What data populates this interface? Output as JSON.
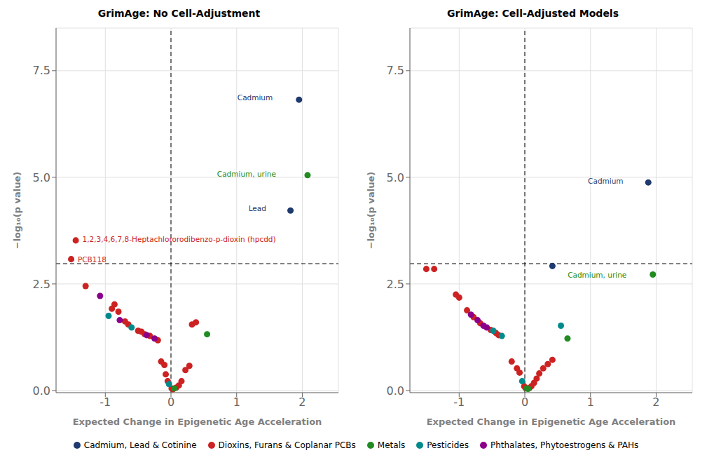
{
  "chart_data": [
    {
      "type": "scatter",
      "title": "GrimAge: No Cell-Adjustment",
      "x_label": "Expected Change in Epigenetic Age Acceleration",
      "y_label": "−log₁₀(p value)",
      "xlim": [
        -1.75,
        2.55
      ],
      "ylim": [
        -0.05,
        8.5
      ],
      "xticks": [
        -1,
        0,
        1,
        2
      ],
      "yticks": [
        {
          "value": 0,
          "label": "0.0"
        },
        2.5,
        {
          "value": 5,
          "label": "5.0"
        },
        7.5
      ],
      "grid": true,
      "legend": "bottom",
      "series": [
        {
          "name": "Cadmium, Lead & Cotinine",
          "color": "#1E3A6E",
          "x": [
            1.95,
            1.82
          ],
          "y": [
            6.82,
            4.22
          ]
        },
        {
          "name": "Dioxins, Furans & Coplanar PCBs",
          "color": "#CC2222",
          "x": [
            -1.45,
            -1.52,
            -1.3,
            -0.9,
            -0.86,
            -0.8,
            -0.7,
            -0.65,
            -0.5,
            -0.45,
            -0.4,
            -0.32,
            -0.2,
            -0.15,
            -0.1,
            -0.08,
            -0.05,
            0.01,
            0.03,
            0.08,
            0.12,
            0.16,
            0.22,
            0.28,
            0.32,
            0.38
          ],
          "y": [
            3.52,
            3.08,
            2.45,
            1.92,
            2.02,
            1.85,
            1.62,
            1.55,
            1.4,
            1.38,
            1.32,
            1.28,
            1.18,
            0.68,
            0.6,
            0.38,
            0.22,
            0.05,
            0.03,
            0.07,
            0.12,
            0.22,
            0.48,
            0.58,
            1.55,
            1.6
          ]
        },
        {
          "name": "Metals",
          "color": "#228B22",
          "x": [
            2.08,
            0.05,
            0.55
          ],
          "y": [
            5.05,
            0.05,
            1.32
          ]
        },
        {
          "name": "Pesticides",
          "color": "#008B8B",
          "x": [
            -0.95,
            -0.6,
            -0.03
          ],
          "y": [
            1.75,
            1.48,
            0.15
          ]
        },
        {
          "name": "Phthalates, Phytoestrogens & PAHs",
          "color": "#8B008B",
          "x": [
            -1.08,
            -0.78,
            -0.37,
            -0.25
          ],
          "y": [
            2.22,
            1.65,
            1.3,
            1.22
          ]
        }
      ],
      "reference_lines": [
        {
          "y": 2.975,
          "color": "#000000",
          "line_style": "dashed"
        },
        {
          "x": 0,
          "color": "#000000",
          "line_style": "dashed"
        }
      ],
      "annotations": [
        {
          "text": "Cadmium",
          "x": 1.55,
          "y": 6.88,
          "color": "#1E3A6E"
        },
        {
          "text": "Cadmium, urine",
          "x": 1.6,
          "y": 5.08,
          "color": "#228B22"
        },
        {
          "text": "Lead",
          "x": 1.45,
          "y": 4.28,
          "color": "#1E3A6E"
        },
        {
          "text": "1,2,3,4,6,7,8-Heptachlororodibenzo-p-dioxin (hpcdd)",
          "x": -1.35,
          "y": 3.55,
          "color": "#CC2222"
        },
        {
          "text": "PCB118",
          "x": -1.42,
          "y": 3.08,
          "color": "#CC2222"
        }
      ]
    },
    {
      "type": "scatter",
      "title": "GrimAge: Cell-Adjusted Models",
      "x_label": "Expected Change in Epigenetic Age Acceleration",
      "y_label": "−log₁₀(p value)",
      "xlim": [
        -1.75,
        2.55
      ],
      "ylim": [
        -0.05,
        8.5
      ],
      "xticks": [
        -1,
        0,
        1,
        2
      ],
      "yticks": [
        {
          "value": 0,
          "label": "0.0"
        },
        2.5,
        {
          "value": 5,
          "label": "5.0"
        },
        7.5
      ],
      "grid": true,
      "legend": "bottom",
      "series": [
        {
          "name": "Cadmium, Lead & Cotinine",
          "color": "#1E3A6E",
          "x": [
            1.88,
            0.42
          ],
          "y": [
            4.88,
            2.92
          ]
        },
        {
          "name": "Dioxins, Furans & Coplanar PCBs",
          "color": "#CC2222",
          "x": [
            -1.5,
            -1.38,
            -1.05,
            -1.0,
            -0.88,
            -0.78,
            -0.68,
            -0.52,
            -0.44,
            -0.4,
            -0.2,
            -0.12,
            -0.08,
            -0.01,
            0.01,
            0.07,
            0.1,
            0.14,
            0.18,
            0.22,
            0.28,
            0.35,
            0.42
          ],
          "y": [
            2.85,
            2.85,
            2.25,
            2.18,
            1.88,
            1.72,
            1.58,
            1.42,
            1.35,
            1.3,
            0.68,
            0.52,
            0.42,
            0.1,
            0.06,
            0.06,
            0.1,
            0.18,
            0.28,
            0.4,
            0.52,
            0.62,
            0.72
          ]
        },
        {
          "name": "Metals",
          "color": "#228B22",
          "x": [
            1.95,
            0.03,
            0.05,
            0.65
          ],
          "y": [
            2.72,
            0.05,
            0.04,
            1.22
          ]
        },
        {
          "name": "Pesticides",
          "color": "#008B8B",
          "x": [
            -0.48,
            -0.35,
            -0.04,
            0.55
          ],
          "y": [
            1.4,
            1.28,
            0.22,
            1.52
          ]
        },
        {
          "name": "Phthalates, Phytoestrogens & PAHs",
          "color": "#8B008B",
          "x": [
            -0.82,
            -0.72,
            -0.63,
            -0.58
          ],
          "y": [
            1.78,
            1.65,
            1.52,
            1.48
          ]
        }
      ],
      "reference_lines": [
        {
          "y": 2.975,
          "color": "#000000",
          "line_style": "dashed"
        },
        {
          "x": 0,
          "color": "#000000",
          "line_style": "dashed"
        }
      ],
      "annotations": [
        {
          "text": "Cadmium",
          "x": 1.5,
          "y": 4.92,
          "color": "#1E3A6E"
        },
        {
          "text": "Cadmium, urine",
          "x": 1.55,
          "y": 2.72,
          "color": "#228B22"
        }
      ]
    }
  ]
}
